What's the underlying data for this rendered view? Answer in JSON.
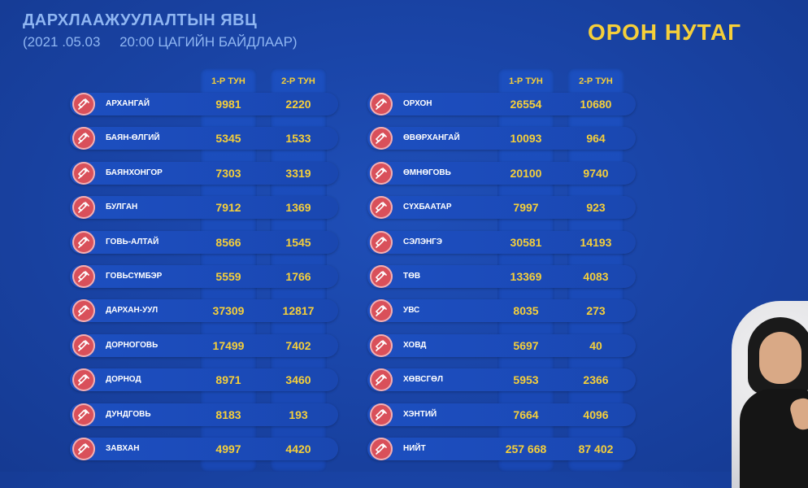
{
  "header": {
    "title": "ДАРХЛААЖУУЛАЛТЫН ЯВЦ",
    "subtitle": "(2021 .05.03     20:00 ЦАГИЙН БАЙДЛААР)",
    "region_title": "ОРОН НУТАГ"
  },
  "columns": {
    "dose1": "1-Р ТУН",
    "dose2": "2-Р ТУН"
  },
  "icon": "syringe-icon",
  "colors": {
    "yellow": "#f5cf3a",
    "blue_bg": "#1a45a8",
    "icon_red": "#d9505a",
    "title_blue": "#8fb6f2"
  },
  "left_rows": [
    {
      "name": "АРХАНГАЙ",
      "dose1": "9981",
      "dose2": "2220"
    },
    {
      "name": "БАЯН-ӨЛГИЙ",
      "dose1": "5345",
      "dose2": "1533"
    },
    {
      "name": "БАЯНХОНГОР",
      "dose1": "7303",
      "dose2": "3319"
    },
    {
      "name": "БУЛГАН",
      "dose1": "7912",
      "dose2": "1369"
    },
    {
      "name": "ГОВЬ-АЛТАЙ",
      "dose1": "8566",
      "dose2": "1545"
    },
    {
      "name": "ГОВЬСҮМБЭР",
      "dose1": "5559",
      "dose2": "1766"
    },
    {
      "name": "ДАРХАН-УУЛ",
      "dose1": "37309",
      "dose2": "12817"
    },
    {
      "name": "ДОРНОГОВЬ",
      "dose1": "17499",
      "dose2": "7402"
    },
    {
      "name": "ДОРНОД",
      "dose1": "8971",
      "dose2": "3460"
    },
    {
      "name": "ДУНДГОВЬ",
      "dose1": "8183",
      "dose2": "193"
    },
    {
      "name": "ЗАВХАН",
      "dose1": "4997",
      "dose2": "4420"
    }
  ],
  "right_rows": [
    {
      "name": "ОРХОН",
      "dose1": "26554",
      "dose2": "10680"
    },
    {
      "name": "ӨВӨРХАНГАЙ",
      "dose1": "10093",
      "dose2": "964"
    },
    {
      "name": "ӨМНӨГОВЬ",
      "dose1": "20100",
      "dose2": "9740"
    },
    {
      "name": "СҮХБААТАР",
      "dose1": "7997",
      "dose2": "923"
    },
    {
      "name": "СЭЛЭНГЭ",
      "dose1": "30581",
      "dose2": "14193"
    },
    {
      "name": "ТӨВ",
      "dose1": "13369",
      "dose2": "4083"
    },
    {
      "name": "УВС",
      "dose1": "8035",
      "dose2": "273"
    },
    {
      "name": "ХОВД",
      "dose1": "5697",
      "dose2": "40"
    },
    {
      "name": "ХӨВСГӨЛ",
      "dose1": "5953",
      "dose2": "2366"
    },
    {
      "name": "ХЭНТИЙ",
      "dose1": "7664",
      "dose2": "4096"
    },
    {
      "name": "НИЙТ",
      "dose1": "257 668",
      "dose2": "87 402"
    }
  ]
}
